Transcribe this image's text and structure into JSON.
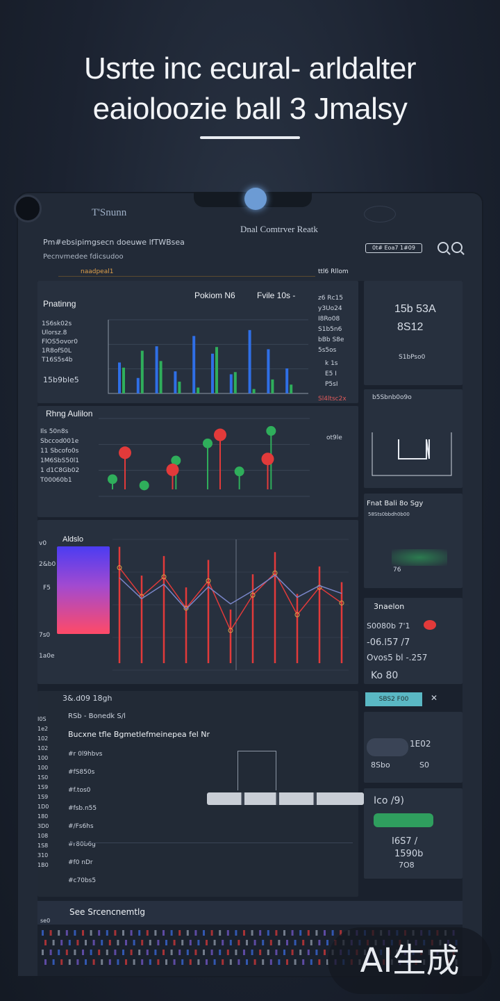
{
  "hero": {
    "line1": "Usrte inc ecural- arldalter",
    "line2": "eaioloozie ball 3 Jmalsy"
  },
  "header": {
    "brand": "T'Snunn",
    "title": "Dnal Comtrver Reatk",
    "address_line1": "Pm#ebsipimgsecn doeuwe lfTWBsea",
    "address_line2": "Pecnvmedee fdicsudoo",
    "badge": "0t# Eoa7 1#09",
    "tab_left": "naadpeal1",
    "tab_right": "ttl6 Rllom"
  },
  "panel_top": {
    "title": "Pnatinng",
    "col1": "Pokiom N6",
    "col2": "Fvile 10s -",
    "left_rows": [
      "1S6sk02s",
      "Ulorsz.8",
      "FlOS5ovor0",
      "1R8ofS0L",
      "T16S5s4b"
    ],
    "left_value": "15b9ble5",
    "right_rows": [
      "z6 Rc15",
      "y3Uo24",
      "I8Ro08",
      "S1b5n6",
      "bBb S8e",
      "5s5os"
    ],
    "right_foot": "Sl4ltsc2x",
    "side_rows": [
      "k 1s",
      "E5 I",
      "P5sI"
    ]
  },
  "panel_mid": {
    "title": "Rhng Aulilon",
    "left_rows": [
      "Ils 50n8s",
      "Sbccod001e",
      "11 Sbcofo0s",
      "1M6SbS50l1",
      "1 d1C8Gb02",
      "T00060b1"
    ],
    "aside": "ot9le"
  },
  "stats_card": {
    "rows": [
      "15b 53A",
      "8S12"
    ],
    "foot": "S1bPso0"
  },
  "chart_card": {
    "title": "b5Sbnb0o9o"
  },
  "side_cards": {
    "card1_title": "Fnat Bali 8o Sgy",
    "card1_sub": "58Sts0bbdh0b00",
    "card1_value": "76",
    "card2_title": "3naelon",
    "card2_rows": [
      "S0080b 7'1",
      "-06.l57 /7",
      "Ovos5 bl -.257"
    ],
    "card2_big": "Ko 80",
    "card2_button": "SBS2 F00",
    "card3_rows": [
      "1E02",
      "8Sbo",
      "S0"
    ],
    "card4_head": "Ico /9)",
    "card4_rows": [
      "I6S7 /",
      "1590b",
      "7O8"
    ]
  },
  "gradient_chart": {
    "title": "Aldslo",
    "left_labels": [
      "2&b0",
      "7s0"
    ],
    "side_top": "v0",
    "side_mid": "F5",
    "side_bottom": "1a0e"
  },
  "list": {
    "header": "3&.d09 18gh",
    "subheader": "RSb - Bonedk S/l",
    "title": "Bucxne   tfle   Bgmetlefmeinepea fel Nr",
    "rows": [
      "#r 0l9hbvs",
      "#fS850s",
      "#f.tos0",
      "#fsb.n55",
      "#/Fs6hs",
      "#r80b6g",
      "#f0 nDr",
      "#c70bs5"
    ],
    "left_numbers": [
      "I0S",
      "1e2",
      "102",
      "102",
      "100",
      "100",
      "1S0",
      "1S9",
      "1S9",
      "1D0",
      "180",
      "3D0",
      "108",
      "1S8",
      "310",
      "1B0"
    ],
    "footer": "See Srcencnemtlg",
    "footer_badge": "se0"
  },
  "watermark": "AI生成",
  "colors": {
    "accent_blue": "#3d6fe8",
    "accent_green": "#2fae5b",
    "accent_red": "#e23a3a",
    "panel": "#27303e",
    "background": "#1b2230"
  },
  "chart_data": [
    {
      "type": "bar",
      "title": "",
      "series": [
        {
          "name": "",
          "color": "#2f6fe6",
          "values": [
            4.2,
            2.1,
            6.4,
            3.0,
            7.8,
            5.4,
            2.6,
            8.6,
            6.0,
            3.4
          ]
        },
        {
          "name": "",
          "color": "#2fae5b",
          "values": [
            3.5,
            5.8,
            4.4,
            1.6,
            0.8,
            6.3,
            2.9,
            0.6,
            1.9,
            1.2
          ]
        }
      ],
      "ylim": [
        0,
        10
      ]
    },
    {
      "type": "scatter",
      "title": "",
      "series": [
        {
          "name": "",
          "color": "#2fae5b",
          "values": [
            2.2,
            1.4,
            4.6,
            6.8,
            3.2,
            8.4
          ]
        },
        {
          "name": "",
          "color": "#e23a3a",
          "values": [
            5.6,
            3.4,
            7.9,
            4.8
          ]
        }
      ],
      "ylim": [
        0,
        10
      ]
    },
    {
      "type": "line",
      "title": "Aldslo",
      "series": [
        {
          "name": "",
          "color": "#e23a3a",
          "values": [
            8.9,
            6.7,
            8.2,
            5.8,
            7.9,
            4.1,
            6.8,
            8.5,
            5.3,
            7.4,
            6.2
          ]
        },
        {
          "name": "",
          "color": "#7a86c9",
          "values": [
            7.6,
            6.0,
            7.1,
            5.2,
            6.9,
            5.6,
            6.6,
            7.8,
            6.1,
            7.0,
            6.4
          ]
        }
      ],
      "ylim": [
        0,
        10
      ]
    }
  ]
}
